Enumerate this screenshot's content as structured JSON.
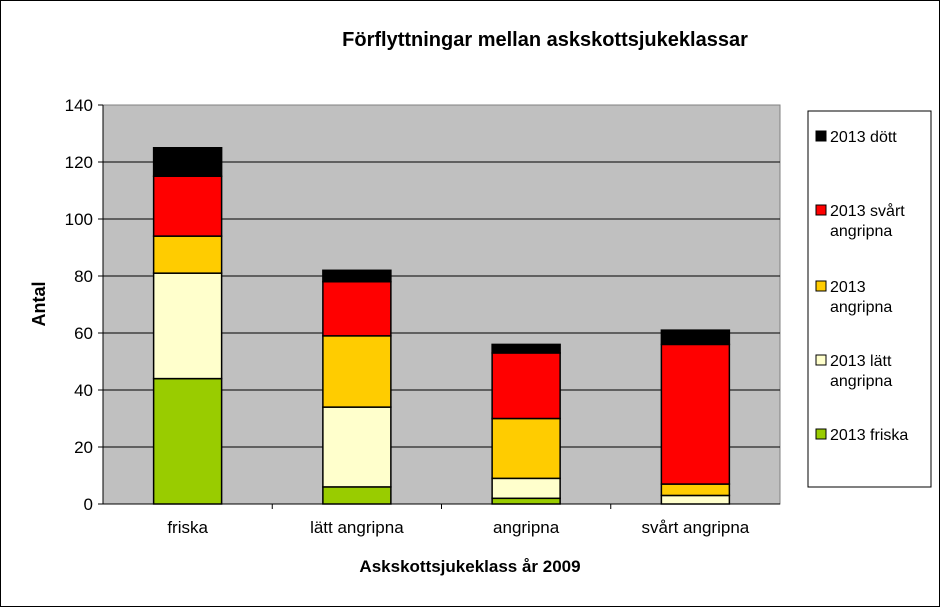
{
  "chart_data": {
    "type": "bar",
    "stacked": true,
    "title": "Förflyttningar mellan askskottsjukeklassar",
    "xlabel": "Askskottsjukeklass år 2009",
    "ylabel": "Antal",
    "ylim": [
      0,
      140
    ],
    "yticks": [
      "0",
      "20",
      "40",
      "60",
      "80",
      "100",
      "120",
      "140"
    ],
    "grid": true,
    "legend_position": "right",
    "categories": [
      "friska",
      "lätt angripna",
      "angripna",
      "svårt angripna"
    ],
    "series": [
      {
        "name": "2013 friska",
        "color": "#99cc00",
        "values": [
          44,
          6,
          2,
          0
        ]
      },
      {
        "name": "2013 lätt angripna",
        "color": "#ffffcc",
        "values": [
          37,
          28,
          7,
          3
        ]
      },
      {
        "name": "2013 angripna",
        "color": "#ffcc00",
        "values": [
          13,
          25,
          21,
          4
        ]
      },
      {
        "name": "2013 svårt angripna",
        "color": "#ff0000",
        "values": [
          21,
          19,
          23,
          49
        ]
      },
      {
        "name": "2013 dött",
        "color": "#000000",
        "values": [
          10,
          4,
          3,
          5
        ]
      }
    ],
    "plot_background": "#c0c0c0"
  }
}
